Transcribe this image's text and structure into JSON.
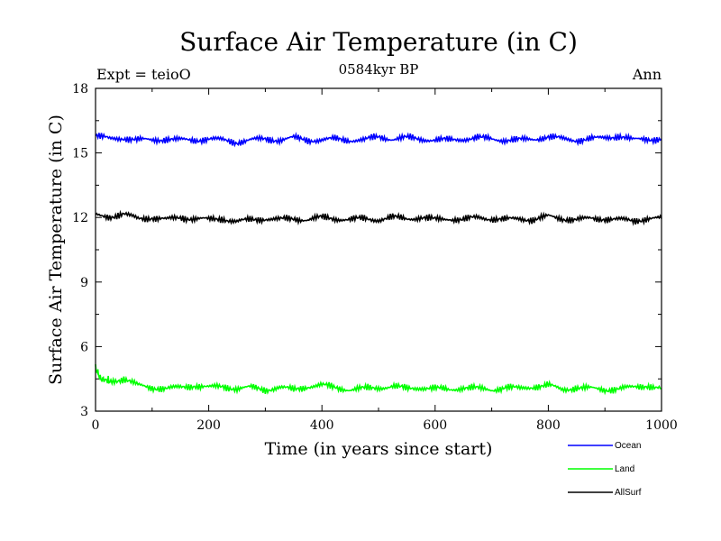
{
  "chart_data": {
    "type": "line",
    "title": "Surface Air Temperature (in C)",
    "subtitle": "0584kyr BP",
    "annotation_left": "Expt = teioO",
    "annotation_right": "Ann",
    "xlabel": "Time (in years since start)",
    "ylabel": "Surface Air Temperature (in C)",
    "xlim": [
      0,
      1000
    ],
    "ylim": [
      3,
      18
    ],
    "xticks": [
      0,
      200,
      400,
      600,
      800,
      1000
    ],
    "yticks": [
      3,
      6,
      9,
      12,
      15,
      18
    ],
    "xtick_labels": [
      "0",
      "200",
      "400",
      "600",
      "800",
      "1000"
    ],
    "ytick_labels": [
      "3",
      "6",
      "9",
      "12",
      "15",
      "18"
    ],
    "legend_position": "bottom-right",
    "grid": false,
    "series": [
      {
        "name": "Ocean",
        "color": "#0000ff",
        "x": [
          0,
          25,
          50,
          75,
          100,
          125,
          150,
          175,
          200,
          225,
          250,
          275,
          300,
          325,
          350,
          375,
          400,
          425,
          450,
          475,
          500,
          525,
          550,
          575,
          600,
          625,
          650,
          675,
          700,
          725,
          750,
          775,
          800,
          825,
          850,
          875,
          900,
          925,
          950,
          975,
          1000
        ],
        "y": [
          15.8,
          15.65,
          15.7,
          15.6,
          15.6,
          15.65,
          15.6,
          15.6,
          15.65,
          15.6,
          15.5,
          15.6,
          15.65,
          15.6,
          15.7,
          15.6,
          15.6,
          15.65,
          15.6,
          15.6,
          15.75,
          15.65,
          15.7,
          15.65,
          15.6,
          15.6,
          15.65,
          15.7,
          15.65,
          15.6,
          15.6,
          15.65,
          15.75,
          15.65,
          15.6,
          15.65,
          15.7,
          15.8,
          15.6,
          15.65,
          15.65
        ]
      },
      {
        "name": "Land",
        "color": "#00ff00",
        "x": [
          0,
          10,
          25,
          50,
          75,
          100,
          125,
          150,
          175,
          200,
          225,
          250,
          275,
          300,
          325,
          350,
          375,
          400,
          425,
          450,
          475,
          500,
          525,
          550,
          575,
          600,
          625,
          650,
          675,
          700,
          725,
          750,
          775,
          800,
          825,
          850,
          875,
          900,
          925,
          950,
          975,
          1000
        ],
        "y": [
          5.0,
          4.5,
          4.4,
          4.5,
          4.2,
          4.1,
          4.05,
          4.1,
          4.2,
          4.1,
          4.15,
          4.05,
          4.1,
          4.0,
          4.1,
          4.0,
          4.15,
          4.2,
          4.1,
          4.0,
          4.05,
          4.1,
          4.15,
          4.05,
          4.1,
          4.05,
          4.0,
          4.1,
          4.05,
          4.0,
          4.1,
          4.05,
          4.15,
          4.2,
          4.0,
          4.1,
          4.05,
          4.0,
          4.05,
          4.1,
          4.2,
          4.05
        ]
      },
      {
        "name": "AllSurf",
        "color": "#000000",
        "x": [
          0,
          25,
          50,
          75,
          100,
          125,
          150,
          175,
          200,
          225,
          250,
          275,
          300,
          325,
          350,
          375,
          400,
          425,
          450,
          475,
          500,
          525,
          550,
          575,
          600,
          625,
          650,
          675,
          700,
          725,
          750,
          775,
          800,
          825,
          850,
          875,
          900,
          925,
          950,
          975,
          1000
        ],
        "y": [
          12.1,
          12.05,
          12.15,
          11.95,
          12.0,
          11.9,
          12.0,
          11.95,
          11.9,
          11.95,
          11.8,
          11.9,
          11.95,
          11.9,
          11.95,
          11.9,
          12.0,
          11.95,
          11.9,
          11.95,
          11.9,
          12.0,
          11.95,
          12.0,
          11.9,
          11.95,
          11.9,
          12.0,
          11.95,
          11.9,
          11.95,
          11.9,
          12.05,
          11.95,
          11.9,
          11.95,
          11.95,
          11.9,
          11.85,
          11.95,
          11.95
        ]
      }
    ]
  }
}
